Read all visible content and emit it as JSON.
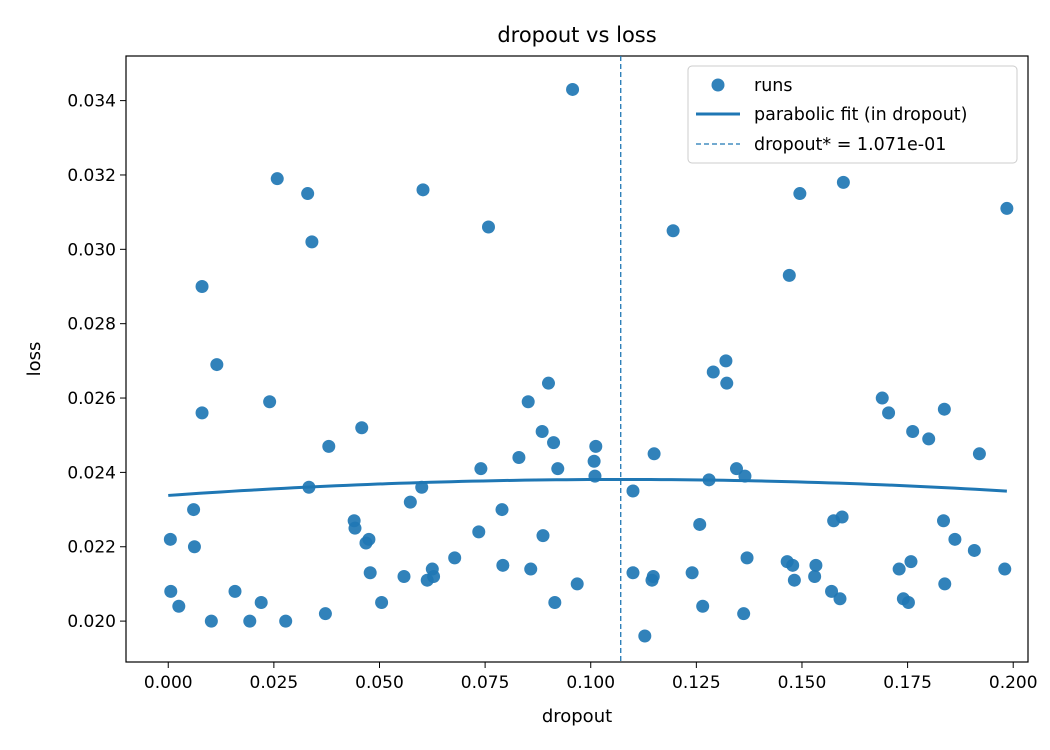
{
  "chart_data": {
    "type": "scatter",
    "title": "dropout vs loss",
    "xlabel": "dropout",
    "ylabel": "loss",
    "xlim": [
      -0.01,
      0.2035
    ],
    "ylim": [
      0.0189,
      0.0352
    ],
    "x_ticks": [
      0.0,
      0.025,
      0.05,
      0.075,
      0.1,
      0.125,
      0.15,
      0.175,
      0.2
    ],
    "x_tick_labels": [
      "0.000",
      "0.025",
      "0.050",
      "0.075",
      "0.100",
      "0.125",
      "0.150",
      "0.175",
      "0.200"
    ],
    "y_ticks": [
      0.02,
      0.022,
      0.024,
      0.026,
      0.028,
      0.03,
      0.032,
      0.034
    ],
    "y_tick_labels": [
      "0.020",
      "0.022",
      "0.024",
      "0.026",
      "0.028",
      "0.030",
      "0.032",
      "0.034"
    ],
    "grid": false,
    "legend_position": "top-right",
    "colors": {
      "points": "#1f77b4",
      "fit": "#1f77b4",
      "vline": "#1f77b4"
    },
    "series": [
      {
        "name": "runs",
        "type": "scatter",
        "points": [
          [
            0.0005,
            0.0222
          ],
          [
            0.0006,
            0.0208
          ],
          [
            0.0025,
            0.0204
          ],
          [
            0.006,
            0.023
          ],
          [
            0.0062,
            0.022
          ],
          [
            0.008,
            0.029
          ],
          [
            0.008,
            0.0256
          ],
          [
            0.0102,
            0.02
          ],
          [
            0.0115,
            0.0269
          ],
          [
            0.0158,
            0.0208
          ],
          [
            0.0193,
            0.02
          ],
          [
            0.022,
            0.0205
          ],
          [
            0.024,
            0.0259
          ],
          [
            0.0258,
            0.0319
          ],
          [
            0.0278,
            0.02
          ],
          [
            0.033,
            0.0315
          ],
          [
            0.0333,
            0.0236
          ],
          [
            0.034,
            0.0302
          ],
          [
            0.0372,
            0.0202
          ],
          [
            0.038,
            0.0247
          ],
          [
            0.044,
            0.0227
          ],
          [
            0.0442,
            0.0225
          ],
          [
            0.0458,
            0.0252
          ],
          [
            0.0468,
            0.0221
          ],
          [
            0.0475,
            0.0222
          ],
          [
            0.0478,
            0.0213
          ],
          [
            0.0505,
            0.0205
          ],
          [
            0.0558,
            0.0212
          ],
          [
            0.0573,
            0.0232
          ],
          [
            0.06,
            0.0236
          ],
          [
            0.0603,
            0.0316
          ],
          [
            0.0613,
            0.0211
          ],
          [
            0.0625,
            0.0214
          ],
          [
            0.0628,
            0.0212
          ],
          [
            0.0678,
            0.0217
          ],
          [
            0.0735,
            0.0224
          ],
          [
            0.074,
            0.0241
          ],
          [
            0.0758,
            0.0306
          ],
          [
            0.079,
            0.023
          ],
          [
            0.0792,
            0.0215
          ],
          [
            0.083,
            0.0244
          ],
          [
            0.0852,
            0.0259
          ],
          [
            0.0858,
            0.0214
          ],
          [
            0.0885,
            0.0251
          ],
          [
            0.0887,
            0.0223
          ],
          [
            0.09,
            0.0264
          ],
          [
            0.0912,
            0.0248
          ],
          [
            0.0915,
            0.0205
          ],
          [
            0.0922,
            0.0241
          ],
          [
            0.0957,
            0.0343
          ],
          [
            0.0968,
            0.021
          ],
          [
            0.1008,
            0.0243
          ],
          [
            0.101,
            0.0239
          ],
          [
            0.1012,
            0.0247
          ],
          [
            0.11,
            0.0235
          ],
          [
            0.11,
            0.0213
          ],
          [
            0.1128,
            0.0196
          ],
          [
            0.1145,
            0.0211
          ],
          [
            0.1148,
            0.0212
          ],
          [
            0.115,
            0.0245
          ],
          [
            0.1195,
            0.0305
          ],
          [
            0.124,
            0.0213
          ],
          [
            0.1258,
            0.0226
          ],
          [
            0.1265,
            0.0204
          ],
          [
            0.128,
            0.0238
          ],
          [
            0.129,
            0.0267
          ],
          [
            0.132,
            0.027
          ],
          [
            0.1322,
            0.0264
          ],
          [
            0.1345,
            0.0241
          ],
          [
            0.1362,
            0.0202
          ],
          [
            0.1365,
            0.0239
          ],
          [
            0.137,
            0.0217
          ],
          [
            0.1465,
            0.0216
          ],
          [
            0.147,
            0.0293
          ],
          [
            0.1478,
            0.0215
          ],
          [
            0.1482,
            0.0211
          ],
          [
            0.1495,
            0.0315
          ],
          [
            0.153,
            0.0212
          ],
          [
            0.1533,
            0.0215
          ],
          [
            0.157,
            0.0208
          ],
          [
            0.1575,
            0.0227
          ],
          [
            0.159,
            0.0206
          ],
          [
            0.1595,
            0.0228
          ],
          [
            0.1598,
            0.0318
          ],
          [
            0.169,
            0.026
          ],
          [
            0.1705,
            0.0256
          ],
          [
            0.173,
            0.0214
          ],
          [
            0.174,
            0.0206
          ],
          [
            0.1752,
            0.0205
          ],
          [
            0.1758,
            0.0216
          ],
          [
            0.1762,
            0.0251
          ],
          [
            0.18,
            0.0249
          ],
          [
            0.1835,
            0.0227
          ],
          [
            0.1837,
            0.0257
          ],
          [
            0.1838,
            0.021
          ],
          [
            0.1862,
            0.0222
          ],
          [
            0.1908,
            0.0219
          ],
          [
            0.192,
            0.0245
          ],
          [
            0.198,
            0.0214
          ],
          [
            0.1985,
            0.0311
          ]
        ]
      },
      {
        "name": "parabolic fit (in dropout)",
        "type": "line",
        "x_range": [
          0.0,
          0.1985
        ],
        "vertex_x": 0.1071,
        "vertex_y": 0.02381,
        "y_at_x0": 0.02338
      },
      {
        "name": "dropout* = 1.071e-01",
        "type": "vline",
        "x": 0.1071
      }
    ]
  }
}
